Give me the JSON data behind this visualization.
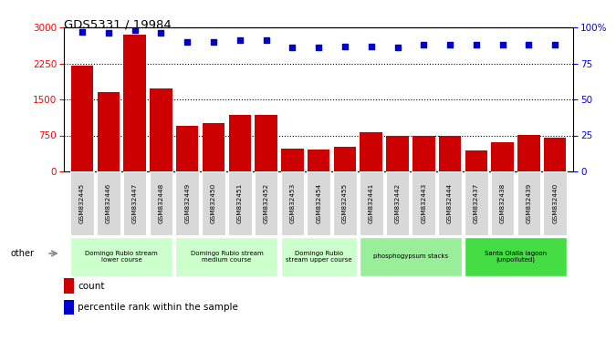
{
  "title": "GDS5331 / 19984",
  "categories": [
    "GSM832445",
    "GSM832446",
    "GSM832447",
    "GSM832448",
    "GSM832449",
    "GSM832450",
    "GSM832451",
    "GSM832452",
    "GSM832453",
    "GSM832454",
    "GSM832455",
    "GSM832441",
    "GSM832442",
    "GSM832443",
    "GSM832444",
    "GSM832437",
    "GSM832438",
    "GSM832439",
    "GSM832440"
  ],
  "counts": [
    2200,
    1650,
    2850,
    1720,
    950,
    1000,
    1180,
    1170,
    470,
    460,
    520,
    820,
    750,
    750,
    750,
    430,
    600,
    760,
    710
  ],
  "percentiles": [
    97,
    96,
    98,
    96,
    90,
    90,
    91,
    91,
    86,
    86,
    87,
    87,
    86,
    88,
    88,
    88,
    88,
    88,
    88
  ],
  "bar_color": "#cc0000",
  "dot_color": "#0000cc",
  "left_yticks": [
    0,
    750,
    1500,
    2250,
    3000
  ],
  "right_yticks": [
    0,
    25,
    50,
    75,
    100
  ],
  "ylim_left": [
    0,
    3000
  ],
  "ylim_right": [
    0,
    100
  ],
  "groups": [
    {
      "label": "Domingo Rubio stream\nlower course",
      "start": 0,
      "end": 3,
      "color": "#ccffcc"
    },
    {
      "label": "Domingo Rubio stream\nmedium course",
      "start": 4,
      "end": 7,
      "color": "#ccffcc"
    },
    {
      "label": "Domingo Rubio\nstream upper course",
      "start": 8,
      "end": 10,
      "color": "#ccffcc"
    },
    {
      "label": "phosphogypsum stacks",
      "start": 11,
      "end": 14,
      "color": "#99ee99"
    },
    {
      "label": "Santa Olalla lagoon\n(unpolluted)",
      "start": 15,
      "end": 18,
      "color": "#44dd44"
    }
  ],
  "other_label": "other",
  "legend_count_label": "count",
  "legend_pct_label": "percentile rank within the sample"
}
